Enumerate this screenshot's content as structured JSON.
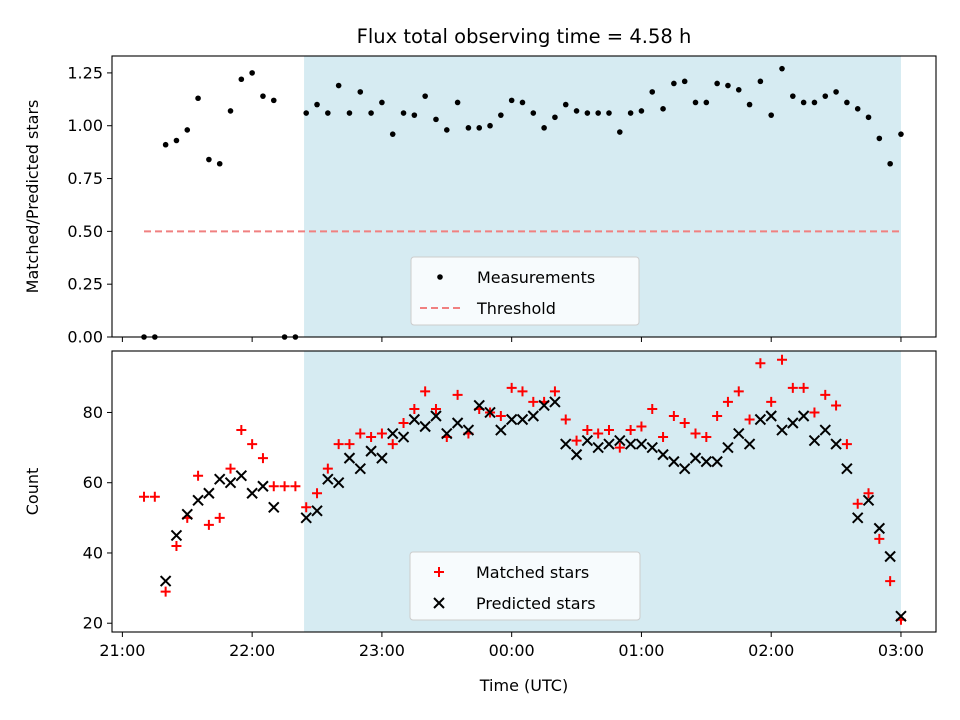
{
  "chart_data": [
    {
      "type": "scatter",
      "title": "Flux total observing time = 4.58 h",
      "xlabel": "",
      "ylabel": "Matched/Predicted stars",
      "xlim_hours": [
        20.92,
        27.27
      ],
      "ylim": [
        0.0,
        1.33
      ],
      "x_ticks": [
        {
          "h": 21,
          "label": ""
        },
        {
          "h": 22,
          "label": ""
        },
        {
          "h": 23,
          "label": ""
        },
        {
          "h": 24,
          "label": ""
        },
        {
          "h": 25,
          "label": ""
        },
        {
          "h": 26,
          "label": ""
        },
        {
          "h": 27,
          "label": ""
        }
      ],
      "y_ticks": [
        {
          "v": 0.0,
          "label": "0.00"
        },
        {
          "v": 0.25,
          "label": "0.25"
        },
        {
          "v": 0.5,
          "label": "0.50"
        },
        {
          "v": 0.75,
          "label": "0.75"
        },
        {
          "v": 1.0,
          "label": "1.00"
        },
        {
          "v": 1.25,
          "label": "1.25"
        }
      ],
      "shaded_span": {
        "start": "22:24",
        "end": "03:00",
        "color": "#add8e6"
      },
      "threshold": {
        "name": "Threshold",
        "value": 0.5,
        "x_range": [
          "21:10",
          "03:00"
        ],
        "color": "#f08080"
      },
      "series": [
        {
          "name": "Measurements",
          "color": "#000000",
          "marker": "dot",
          "x": [
            "21:10",
            "21:15",
            "21:20",
            "21:25",
            "21:30",
            "21:35",
            "21:40",
            "21:45",
            "21:50",
            "21:55",
            "22:00",
            "22:05",
            "22:10",
            "22:15",
            "22:20",
            "22:25",
            "22:30",
            "22:35",
            "22:40",
            "22:45",
            "22:50",
            "22:55",
            "23:00",
            "23:05",
            "23:10",
            "23:15",
            "23:20",
            "23:25",
            "23:30",
            "23:35",
            "23:40",
            "23:45",
            "23:50",
            "23:55",
            "00:00",
            "00:05",
            "00:10",
            "00:15",
            "00:20",
            "00:25",
            "00:30",
            "00:35",
            "00:40",
            "00:45",
            "00:50",
            "00:55",
            "01:00",
            "01:05",
            "01:10",
            "01:15",
            "01:20",
            "01:25",
            "01:30",
            "01:35",
            "01:40",
            "01:45",
            "01:50",
            "01:55",
            "02:00",
            "02:05",
            "02:10",
            "02:15",
            "02:20",
            "02:25",
            "02:30",
            "02:35",
            "02:40",
            "02:45",
            "02:50",
            "02:55",
            "03:00"
          ],
          "y": [
            0.0,
            0.0,
            0.91,
            0.93,
            0.98,
            1.13,
            0.84,
            0.82,
            1.07,
            1.22,
            1.25,
            1.14,
            1.12,
            0.0,
            0.0,
            1.06,
            1.1,
            1.06,
            1.19,
            1.06,
            1.16,
            1.06,
            1.11,
            0.96,
            1.06,
            1.05,
            1.14,
            1.03,
            0.98,
            1.11,
            0.99,
            0.99,
            1.0,
            1.05,
            1.12,
            1.11,
            1.06,
            0.99,
            1.04,
            1.1,
            1.07,
            1.06,
            1.06,
            1.06,
            0.97,
            1.06,
            1.07,
            1.16,
            1.08,
            1.2,
            1.21,
            1.11,
            1.11,
            1.2,
            1.19,
            1.17,
            1.1,
            1.21,
            1.05,
            1.27,
            1.14,
            1.11,
            1.11,
            1.14,
            1.16,
            1.11,
            1.08,
            1.04,
            0.94,
            0.82,
            0.96
          ]
        }
      ],
      "legend": {
        "position": "bottom-center",
        "entries": [
          "Measurements",
          "Threshold"
        ]
      }
    },
    {
      "type": "scatter",
      "title": "",
      "xlabel": "Time (UTC)",
      "ylabel": "Count",
      "xlim_hours": [
        20.92,
        27.27
      ],
      "ylim": [
        17.5,
        97.5
      ],
      "x_ticks": [
        {
          "h": 21,
          "label": "21:00"
        },
        {
          "h": 22,
          "label": "22:00"
        },
        {
          "h": 23,
          "label": "23:00"
        },
        {
          "h": 24,
          "label": "00:00"
        },
        {
          "h": 25,
          "label": "01:00"
        },
        {
          "h": 26,
          "label": "02:00"
        },
        {
          "h": 27,
          "label": "03:00"
        }
      ],
      "y_ticks": [
        {
          "v": 20,
          "label": "20"
        },
        {
          "v": 40,
          "label": "40"
        },
        {
          "v": 60,
          "label": "60"
        },
        {
          "v": 80,
          "label": "80"
        }
      ],
      "shaded_span": {
        "start": "22:24",
        "end": "03:00",
        "color": "#add8e6"
      },
      "series": [
        {
          "name": "Matched stars",
          "color": "#ff0000",
          "marker": "plus",
          "x": [
            "21:10",
            "21:15",
            "21:20",
            "21:25",
            "21:30",
            "21:35",
            "21:40",
            "21:45",
            "21:50",
            "21:55",
            "22:00",
            "22:05",
            "22:10",
            "22:15",
            "22:20",
            "22:25",
            "22:30",
            "22:35",
            "22:40",
            "22:45",
            "22:50",
            "22:55",
            "23:00",
            "23:05",
            "23:10",
            "23:15",
            "23:20",
            "23:25",
            "23:30",
            "23:35",
            "23:40",
            "23:45",
            "23:50",
            "23:55",
            "00:00",
            "00:05",
            "00:10",
            "00:15",
            "00:20",
            "00:25",
            "00:30",
            "00:35",
            "00:40",
            "00:45",
            "00:50",
            "00:55",
            "01:00",
            "01:05",
            "01:10",
            "01:15",
            "01:20",
            "01:25",
            "01:30",
            "01:35",
            "01:40",
            "01:45",
            "01:50",
            "01:55",
            "02:00",
            "02:05",
            "02:10",
            "02:15",
            "02:20",
            "02:25",
            "02:30",
            "02:35",
            "02:40",
            "02:45",
            "02:50",
            "02:55",
            "03:00"
          ],
          "y": [
            56,
            56,
            29,
            42,
            50,
            62,
            48,
            50,
            64,
            75,
            71,
            67,
            59,
            59,
            59,
            53,
            57,
            64,
            71,
            71,
            74,
            73,
            74,
            71,
            77,
            81,
            86,
            81,
            73,
            85,
            74,
            81,
            80,
            79,
            87,
            86,
            83,
            83,
            86,
            78,
            72,
            75,
            74,
            75,
            70,
            75,
            76,
            81,
            73,
            79,
            77,
            74,
            73,
            79,
            83,
            86,
            78,
            94,
            83,
            95,
            87,
            87,
            80,
            85,
            82,
            71,
            54,
            57,
            44,
            32,
            21
          ]
        },
        {
          "name": "Predicted stars",
          "color": "#000000",
          "marker": "x",
          "x": [
            "21:20",
            "21:25",
            "21:30",
            "21:35",
            "21:40",
            "21:45",
            "21:50",
            "21:55",
            "22:00",
            "22:05",
            "22:10",
            "22:25",
            "22:30",
            "22:35",
            "22:40",
            "22:45",
            "22:50",
            "22:55",
            "23:00",
            "23:05",
            "23:10",
            "23:15",
            "23:20",
            "23:25",
            "23:30",
            "23:35",
            "23:40",
            "23:45",
            "23:50",
            "23:55",
            "00:00",
            "00:05",
            "00:10",
            "00:15",
            "00:20",
            "00:25",
            "00:30",
            "00:35",
            "00:40",
            "00:45",
            "00:50",
            "00:55",
            "01:00",
            "01:05",
            "01:10",
            "01:15",
            "01:20",
            "01:25",
            "01:30",
            "01:35",
            "01:40",
            "01:45",
            "01:50",
            "01:55",
            "02:00",
            "02:05",
            "02:10",
            "02:15",
            "02:20",
            "02:25",
            "02:30",
            "02:35",
            "02:40",
            "02:45",
            "02:50",
            "02:55",
            "03:00"
          ],
          "y": [
            32,
            45,
            51,
            55,
            57,
            61,
            60,
            62,
            57,
            59,
            53,
            50,
            52,
            61,
            60,
            67,
            64,
            69,
            67,
            74,
            73,
            78,
            76,
            79,
            74,
            77,
            75,
            82,
            80,
            75,
            78,
            78,
            79,
            82,
            83,
            71,
            68,
            72,
            70,
            71,
            72,
            71,
            71,
            70,
            68,
            66,
            64,
            67,
            66,
            66,
            70,
            74,
            71,
            78,
            79,
            75,
            77,
            79,
            72,
            75,
            71,
            64,
            50,
            55,
            47,
            39,
            22
          ]
        }
      ],
      "legend": {
        "position": "bottom-center",
        "entries": [
          "Matched stars",
          "Predicted stars"
        ]
      }
    }
  ]
}
